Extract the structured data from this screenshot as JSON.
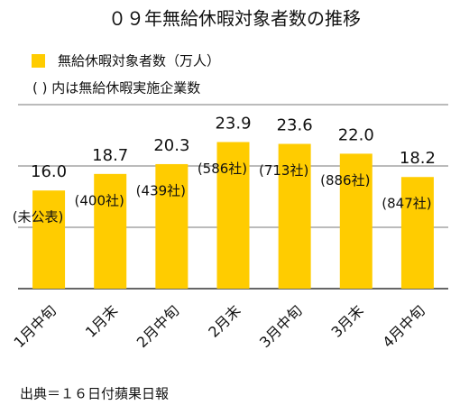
{
  "chart_data": {
    "type": "bar",
    "title": "０９年無給休暇対象者数の推移",
    "legend": [
      "無給休暇対象者数（万人）",
      "( ) 内は無給休暇実施企業数"
    ],
    "categories": [
      "1月中旬",
      "1月末",
      "2月中旬",
      "2月末",
      "3月中旬",
      "3月末",
      "4月中旬"
    ],
    "values": [
      16.0,
      18.7,
      20.3,
      23.9,
      23.6,
      22.0,
      18.2
    ],
    "value_labels": [
      "16.0",
      "18.7",
      "20.3",
      "23.9",
      "23.6",
      "22.0",
      "18.2"
    ],
    "annotations": [
      "(未公表)",
      "(400社)",
      "(439社)",
      "(586社)",
      "(713社)",
      "(886社)",
      "(847社)"
    ],
    "color": "#ffcc00",
    "ylim": [
      0,
      30
    ],
    "grid_lines": [
      0,
      10,
      20,
      30
    ],
    "source": "出典＝１６日付蘋果日報"
  }
}
